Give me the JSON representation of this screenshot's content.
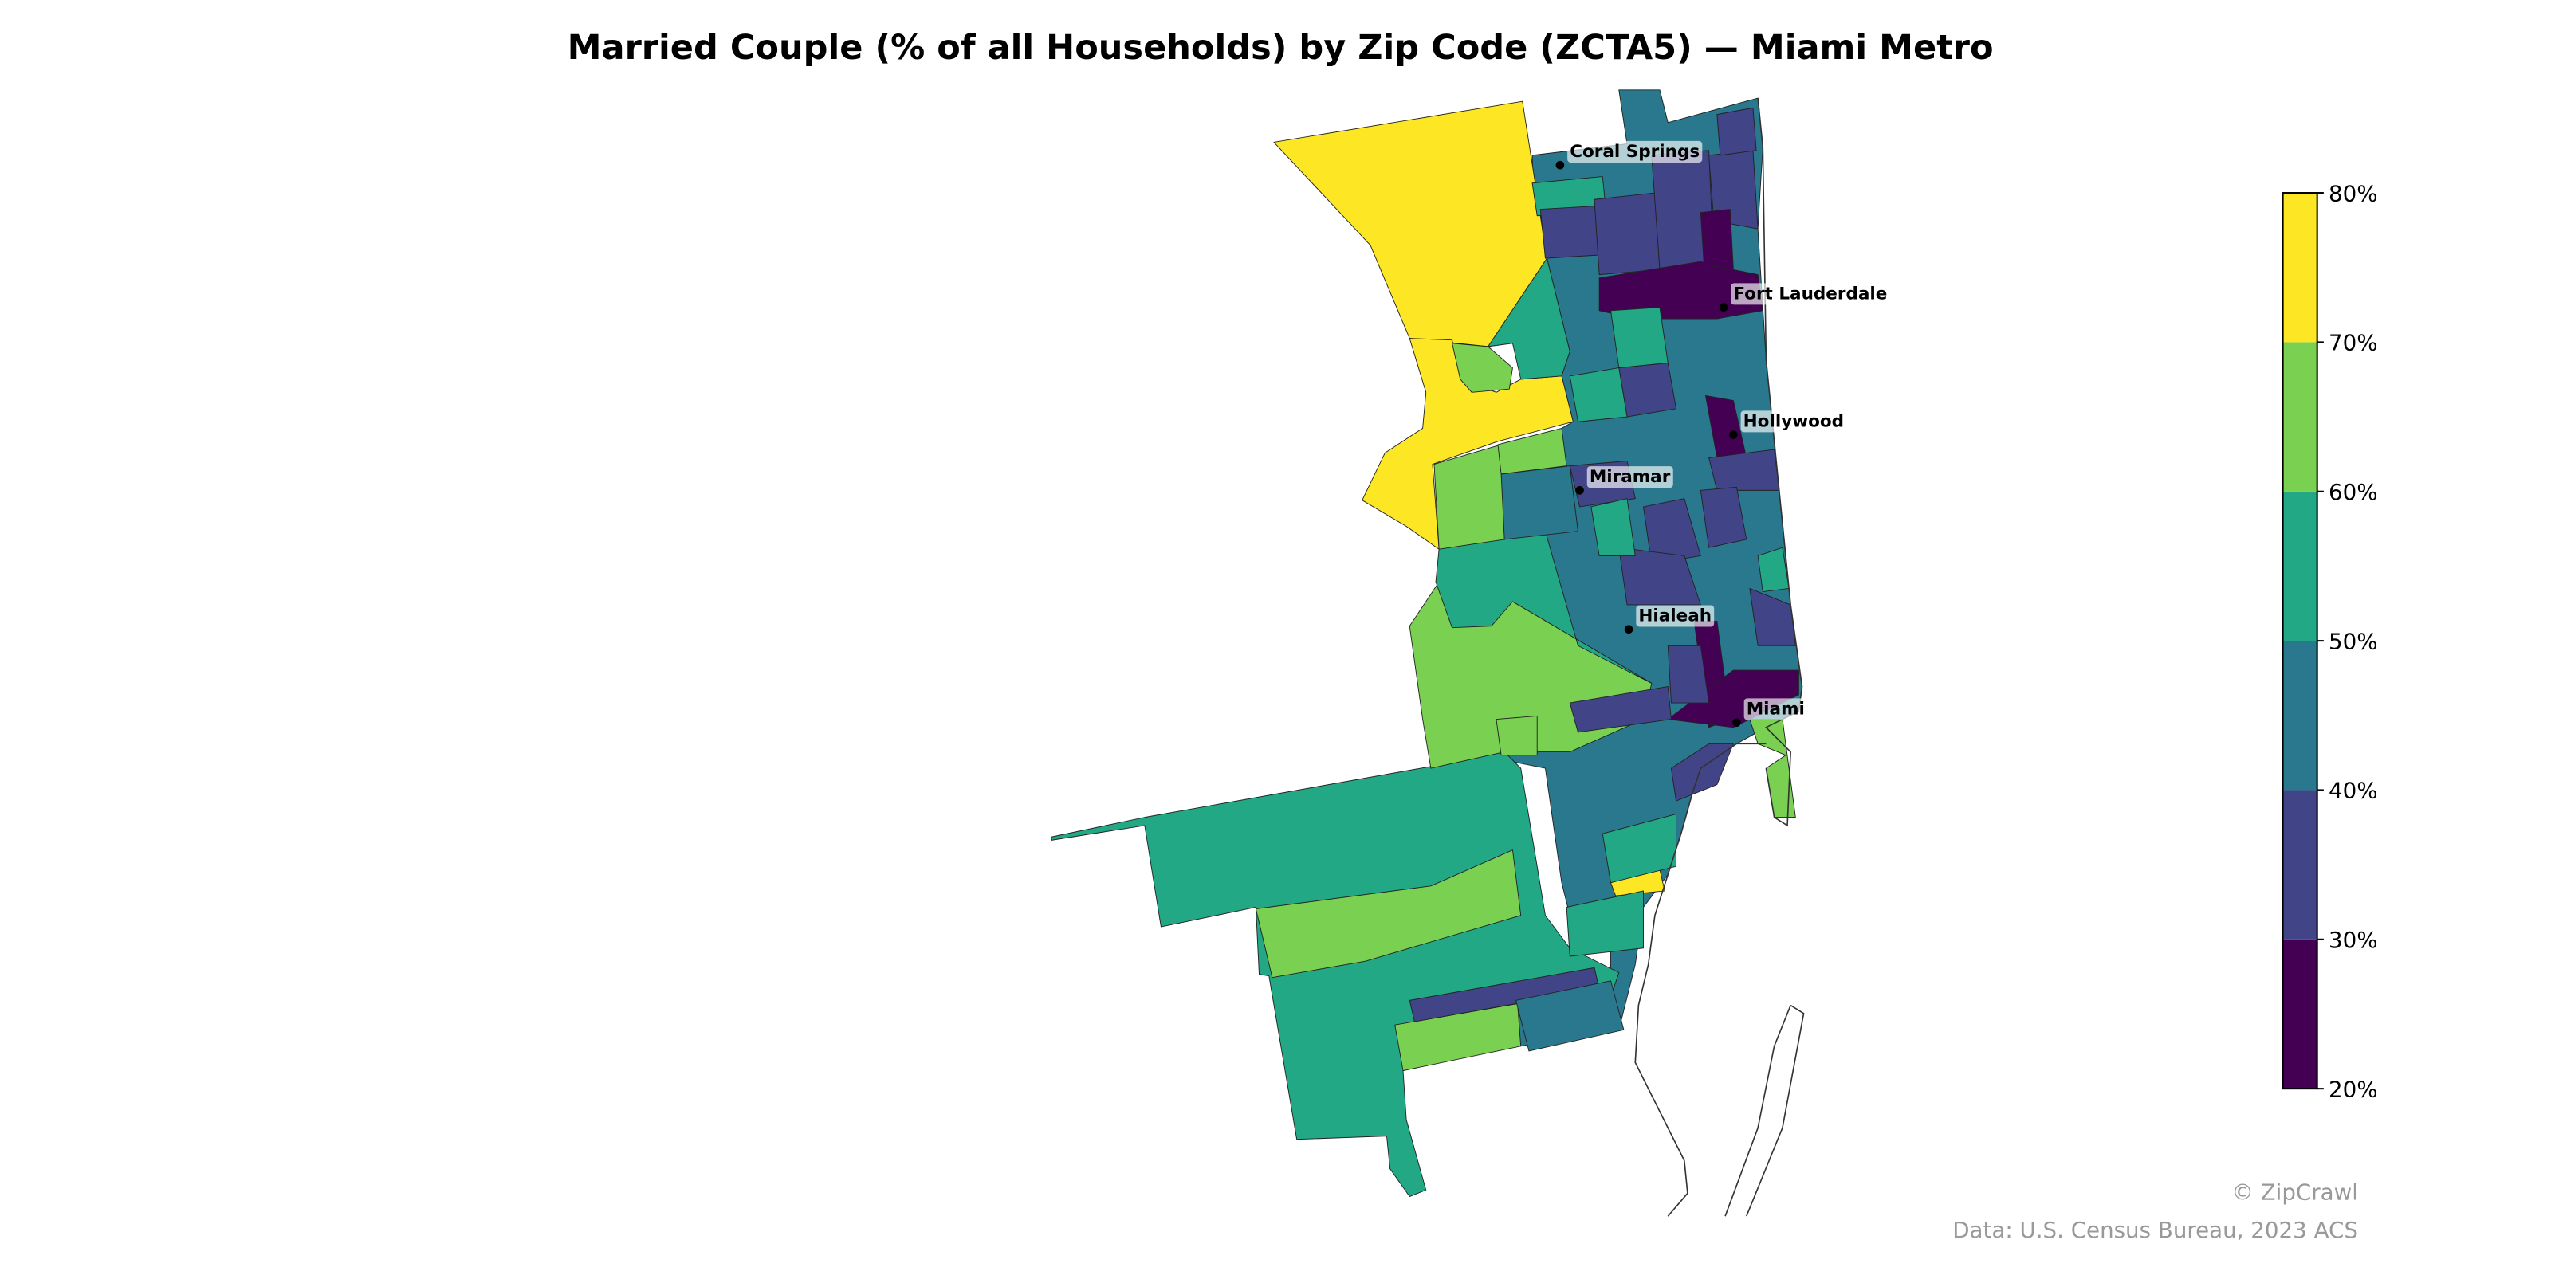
{
  "title": "Married Couple (% of all Households) by Zip Code (ZCTA5) — Miami Metro",
  "legend": {
    "ticks": [
      "20%",
      "30%",
      "40%",
      "50%",
      "60%",
      "70%",
      "80%"
    ],
    "bins": [
      {
        "range": "20%–30%",
        "color": "#440154"
      },
      {
        "range": "30%–40%",
        "color": "#414487"
      },
      {
        "range": "40%–50%",
        "color": "#2a788e"
      },
      {
        "range": "50%–60%",
        "color": "#22a884"
      },
      {
        "range": "60%–70%",
        "color": "#7ad151"
      },
      {
        "range": "70%–80%",
        "color": "#fde725"
      }
    ]
  },
  "cities": [
    {
      "name": "Coral Springs"
    },
    {
      "name": "Fort Lauderdale"
    },
    {
      "name": "Hollywood"
    },
    {
      "name": "Miramar"
    },
    {
      "name": "Hialeah"
    },
    {
      "name": "Miami"
    }
  ],
  "footer": {
    "credit": "© ZipCrawl",
    "source": "Data: U.S. Census Bureau, 2023 ACS"
  }
}
